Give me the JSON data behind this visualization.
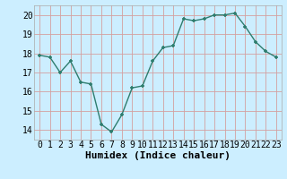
{
  "x": [
    0,
    1,
    2,
    3,
    4,
    5,
    6,
    7,
    8,
    9,
    10,
    11,
    12,
    13,
    14,
    15,
    16,
    17,
    18,
    19,
    20,
    21,
    22,
    23
  ],
  "y": [
    17.9,
    17.8,
    17.0,
    17.6,
    16.5,
    16.4,
    14.3,
    13.9,
    14.8,
    16.2,
    16.3,
    17.6,
    18.3,
    18.4,
    19.8,
    19.7,
    19.8,
    20.0,
    20.0,
    20.1,
    19.4,
    18.6,
    18.1,
    17.8
  ],
  "line_color": "#2e7d6e",
  "marker": "+",
  "marker_size": 3.5,
  "marker_lw": 1.2,
  "line_width": 1.0,
  "bg_color": "#cceeff",
  "grid_color": "#d4a0a0",
  "xlabel": "Humidex (Indice chaleur)",
  "xlabel_fontsize": 8,
  "tick_fontsize": 7,
  "ylim": [
    13.5,
    20.5
  ],
  "xlim": [
    -0.5,
    23.5
  ],
  "yticks": [
    14,
    15,
    16,
    17,
    18,
    19,
    20
  ],
  "xticks": [
    0,
    1,
    2,
    3,
    4,
    5,
    6,
    7,
    8,
    9,
    10,
    11,
    12,
    13,
    14,
    15,
    16,
    17,
    18,
    19,
    20,
    21,
    22,
    23
  ]
}
